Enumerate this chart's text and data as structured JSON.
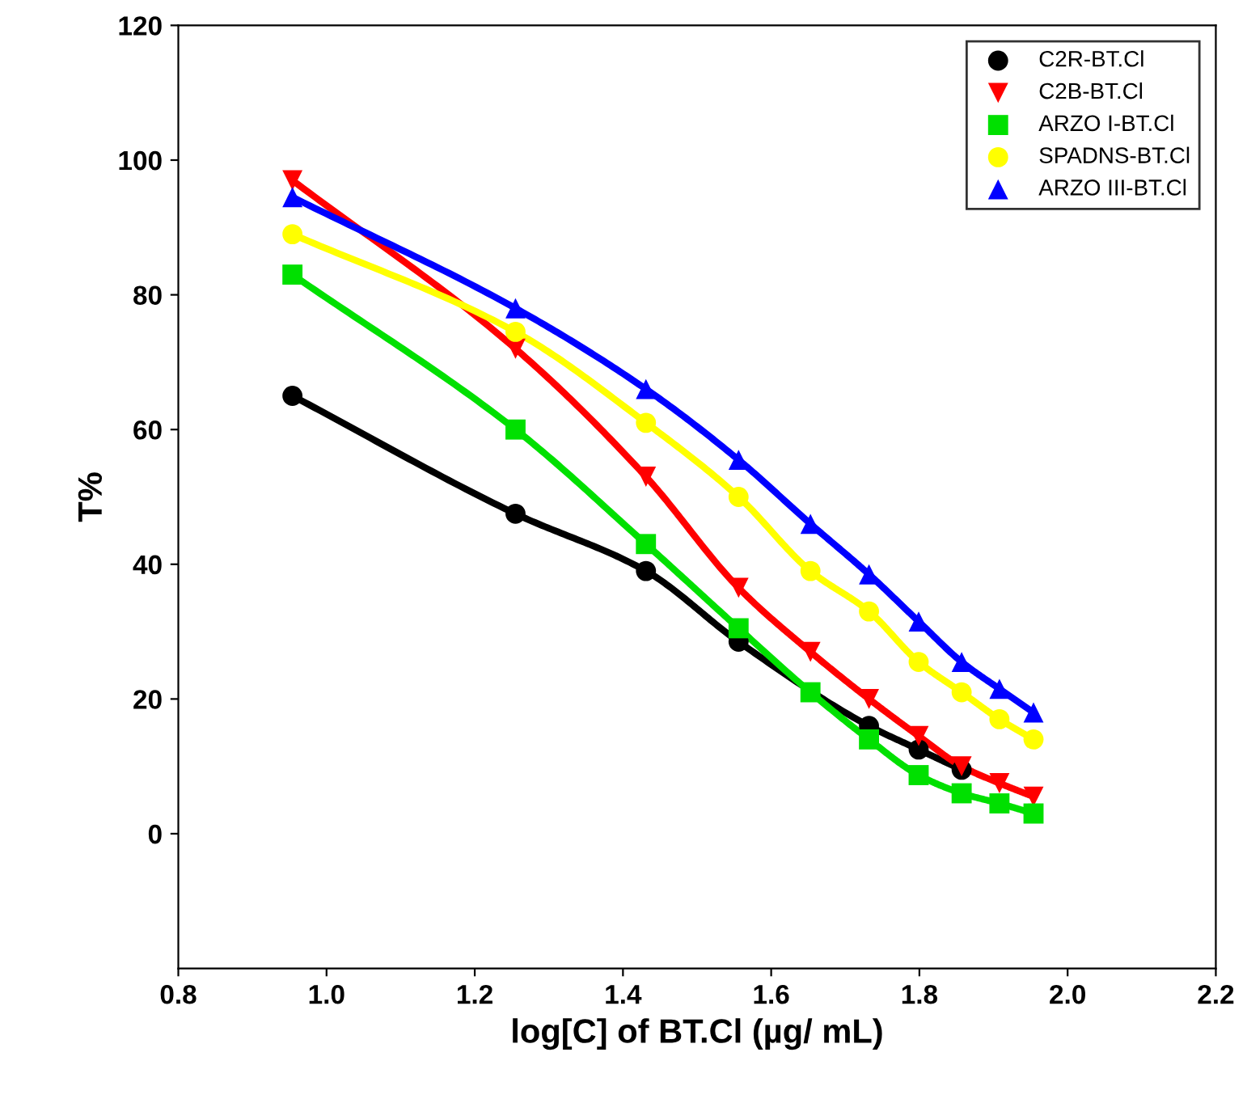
{
  "chart_data": {
    "type": "line",
    "xlabel": "log[C] of BT.Cl (µg/ mL)",
    "ylabel": "T%",
    "x": [
      0.954,
      1.255,
      1.431,
      1.556,
      1.653,
      1.732,
      1.799,
      1.857,
      1.908,
      1.954
    ],
    "series": [
      {
        "name": "C2R-BT.Cl",
        "color": "#000000",
        "marker": "circle",
        "values": [
          65,
          47.5,
          39,
          28.5,
          null,
          16,
          12.5,
          9.5,
          null,
          null
        ]
      },
      {
        "name": "C2B-BT.Cl",
        "color": "#ff0000",
        "marker": "triangle_down",
        "values": [
          97,
          72,
          53,
          36.5,
          27,
          20,
          14.5,
          10,
          7.5,
          5.5
        ]
      },
      {
        "name": "ARZO I-BT.Cl",
        "color": "#00e000",
        "marker": "square",
        "values": [
          83,
          60,
          43,
          30.5,
          21,
          14,
          8.7,
          6,
          4.5,
          3
        ]
      },
      {
        "name": "SPADNS-BT.Cl",
        "color": "#ffff00",
        "marker": "circle",
        "values": [
          89,
          74.5,
          61,
          50,
          39,
          33,
          25.5,
          21,
          17,
          14
        ]
      },
      {
        "name": "ARZO III-BT.Cl",
        "color": "#0000ff",
        "marker": "triangle",
        "values": [
          94.5,
          78,
          66,
          55.5,
          46,
          38.5,
          31.5,
          25.5,
          21.5,
          18
        ]
      }
    ],
    "xlim": [
      0.8,
      2.2
    ],
    "xticks": [
      {
        "value": 0.8,
        "label": "0.8"
      },
      {
        "value": 1.0,
        "label": "1.0"
      },
      {
        "value": 1.2,
        "label": "1.2"
      },
      {
        "value": 1.4,
        "label": "1.4"
      },
      {
        "value": 1.6,
        "label": "1.6"
      },
      {
        "value": 1.8,
        "label": "1.8"
      },
      {
        "value": 2.0,
        "label": "2.0"
      },
      {
        "value": 2.2,
        "label": "2.2"
      }
    ],
    "ylim": [
      -20,
      120
    ],
    "yticks": [
      0,
      20,
      40,
      60,
      80,
      100,
      120
    ],
    "grid": false,
    "legend": "top right",
    "line_style": "solid"
  }
}
